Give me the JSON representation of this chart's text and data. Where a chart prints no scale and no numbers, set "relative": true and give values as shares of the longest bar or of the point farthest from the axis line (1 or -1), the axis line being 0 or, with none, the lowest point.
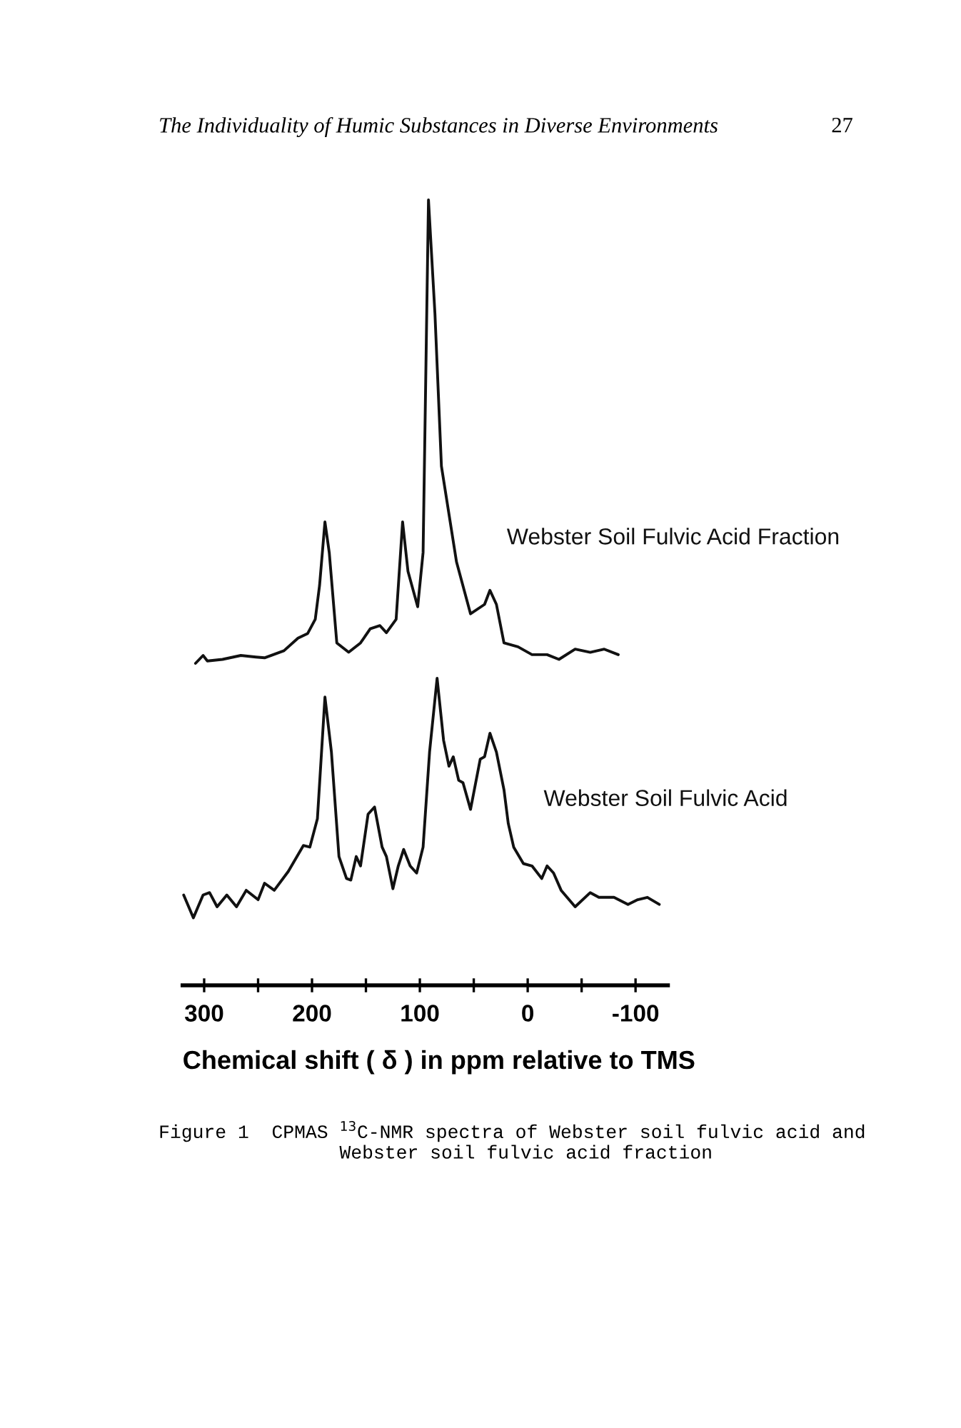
{
  "chart_data": {
    "type": "line",
    "relative": true,
    "xlim": [
      320,
      -130
    ],
    "tick_labels": "x",
    "grid": false,
    "legend": false,
    "marker": "none",
    "line_style": "solid",
    "xlabel": "Chemical shift ( δ ) in ppm relative to TMS",
    "xticks": [
      300,
      {
        "value": 250,
        "label": null
      },
      200,
      {
        "value": 150,
        "label": null
      },
      100,
      {
        "value": 50,
        "label": null
      },
      0,
      {
        "value": -50,
        "label": null
      },
      -100
    ],
    "annotations": [
      "The Individuality of Humic Substances in Diverse Environments",
      "27",
      "Figure 1  CPMAS $^{13}$C-NMR spectra of Webster soil fulvic acid and\n                Webster soil fulvic acid fraction"
    ],
    "series": [
      {
        "name": "Webster Soil Fulvic Acid Fraction",
        "color": "#111111",
        "x": [
          308,
          301,
          297,
          283,
          266,
          252,
          244,
          226,
          213,
          204,
          197,
          193,
          188,
          184,
          177,
          166,
          155,
          146,
          137,
          131,
          122,
          116,
          111,
          102,
          97,
          92,
          86,
          80,
          66,
          53,
          40,
          35,
          29,
          22,
          9,
          -4,
          -18,
          -29,
          -44,
          -58,
          -71,
          -84
        ],
        "values": [
          0.41,
          0.42,
          0.413,
          0.415,
          0.42,
          0.418,
          0.417,
          0.426,
          0.442,
          0.448,
          0.466,
          0.509,
          0.59,
          0.551,
          0.436,
          0.424,
          0.436,
          0.454,
          0.458,
          0.449,
          0.466,
          0.59,
          0.527,
          0.482,
          0.551,
          1,
          0.855,
          0.661,
          0.539,
          0.473,
          0.485,
          0.503,
          0.485,
          0.436,
          0.431,
          0.421,
          0.421,
          0.415,
          0.428,
          0.424,
          0.428,
          0.421
        ]
      },
      {
        "name": "Webster Soil Fulvic Acid",
        "color": "#111111",
        "x": [
          319,
          310,
          301,
          295,
          288,
          279,
          270,
          261,
          250,
          244,
          235,
          222,
          208,
          202,
          195,
          188,
          182,
          175,
          168,
          164,
          159,
          155,
          148,
          142,
          135,
          131,
          125,
          120,
          115,
          109,
          103,
          97,
          91,
          84,
          78,
          73,
          69,
          64,
          60,
          53,
          44,
          40,
          35,
          29,
          22,
          18,
          13,
          4,
          -4,
          -13,
          -18,
          -24,
          -31,
          -44,
          -58,
          -66,
          -80,
          -93,
          -102,
          -111,
          -122
        ],
        "values": [
          0.115,
          0.086,
          0.115,
          0.118,
          0.1,
          0.115,
          0.1,
          0.121,
          0.109,
          0.13,
          0.121,
          0.145,
          0.178,
          0.176,
          0.212,
          0.367,
          0.297,
          0.164,
          0.136,
          0.134,
          0.164,
          0.152,
          0.218,
          0.227,
          0.176,
          0.164,
          0.123,
          0.152,
          0.173,
          0.152,
          0.143,
          0.176,
          0.297,
          0.391,
          0.312,
          0.279,
          0.291,
          0.261,
          0.258,
          0.224,
          0.288,
          0.291,
          0.321,
          0.297,
          0.249,
          0.206,
          0.176,
          0.155,
          0.152,
          0.136,
          0.152,
          0.143,
          0.121,
          0.1,
          0.118,
          0.112,
          0.112,
          0.103,
          0.109,
          0.112,
          0.103
        ]
      }
    ]
  }
}
